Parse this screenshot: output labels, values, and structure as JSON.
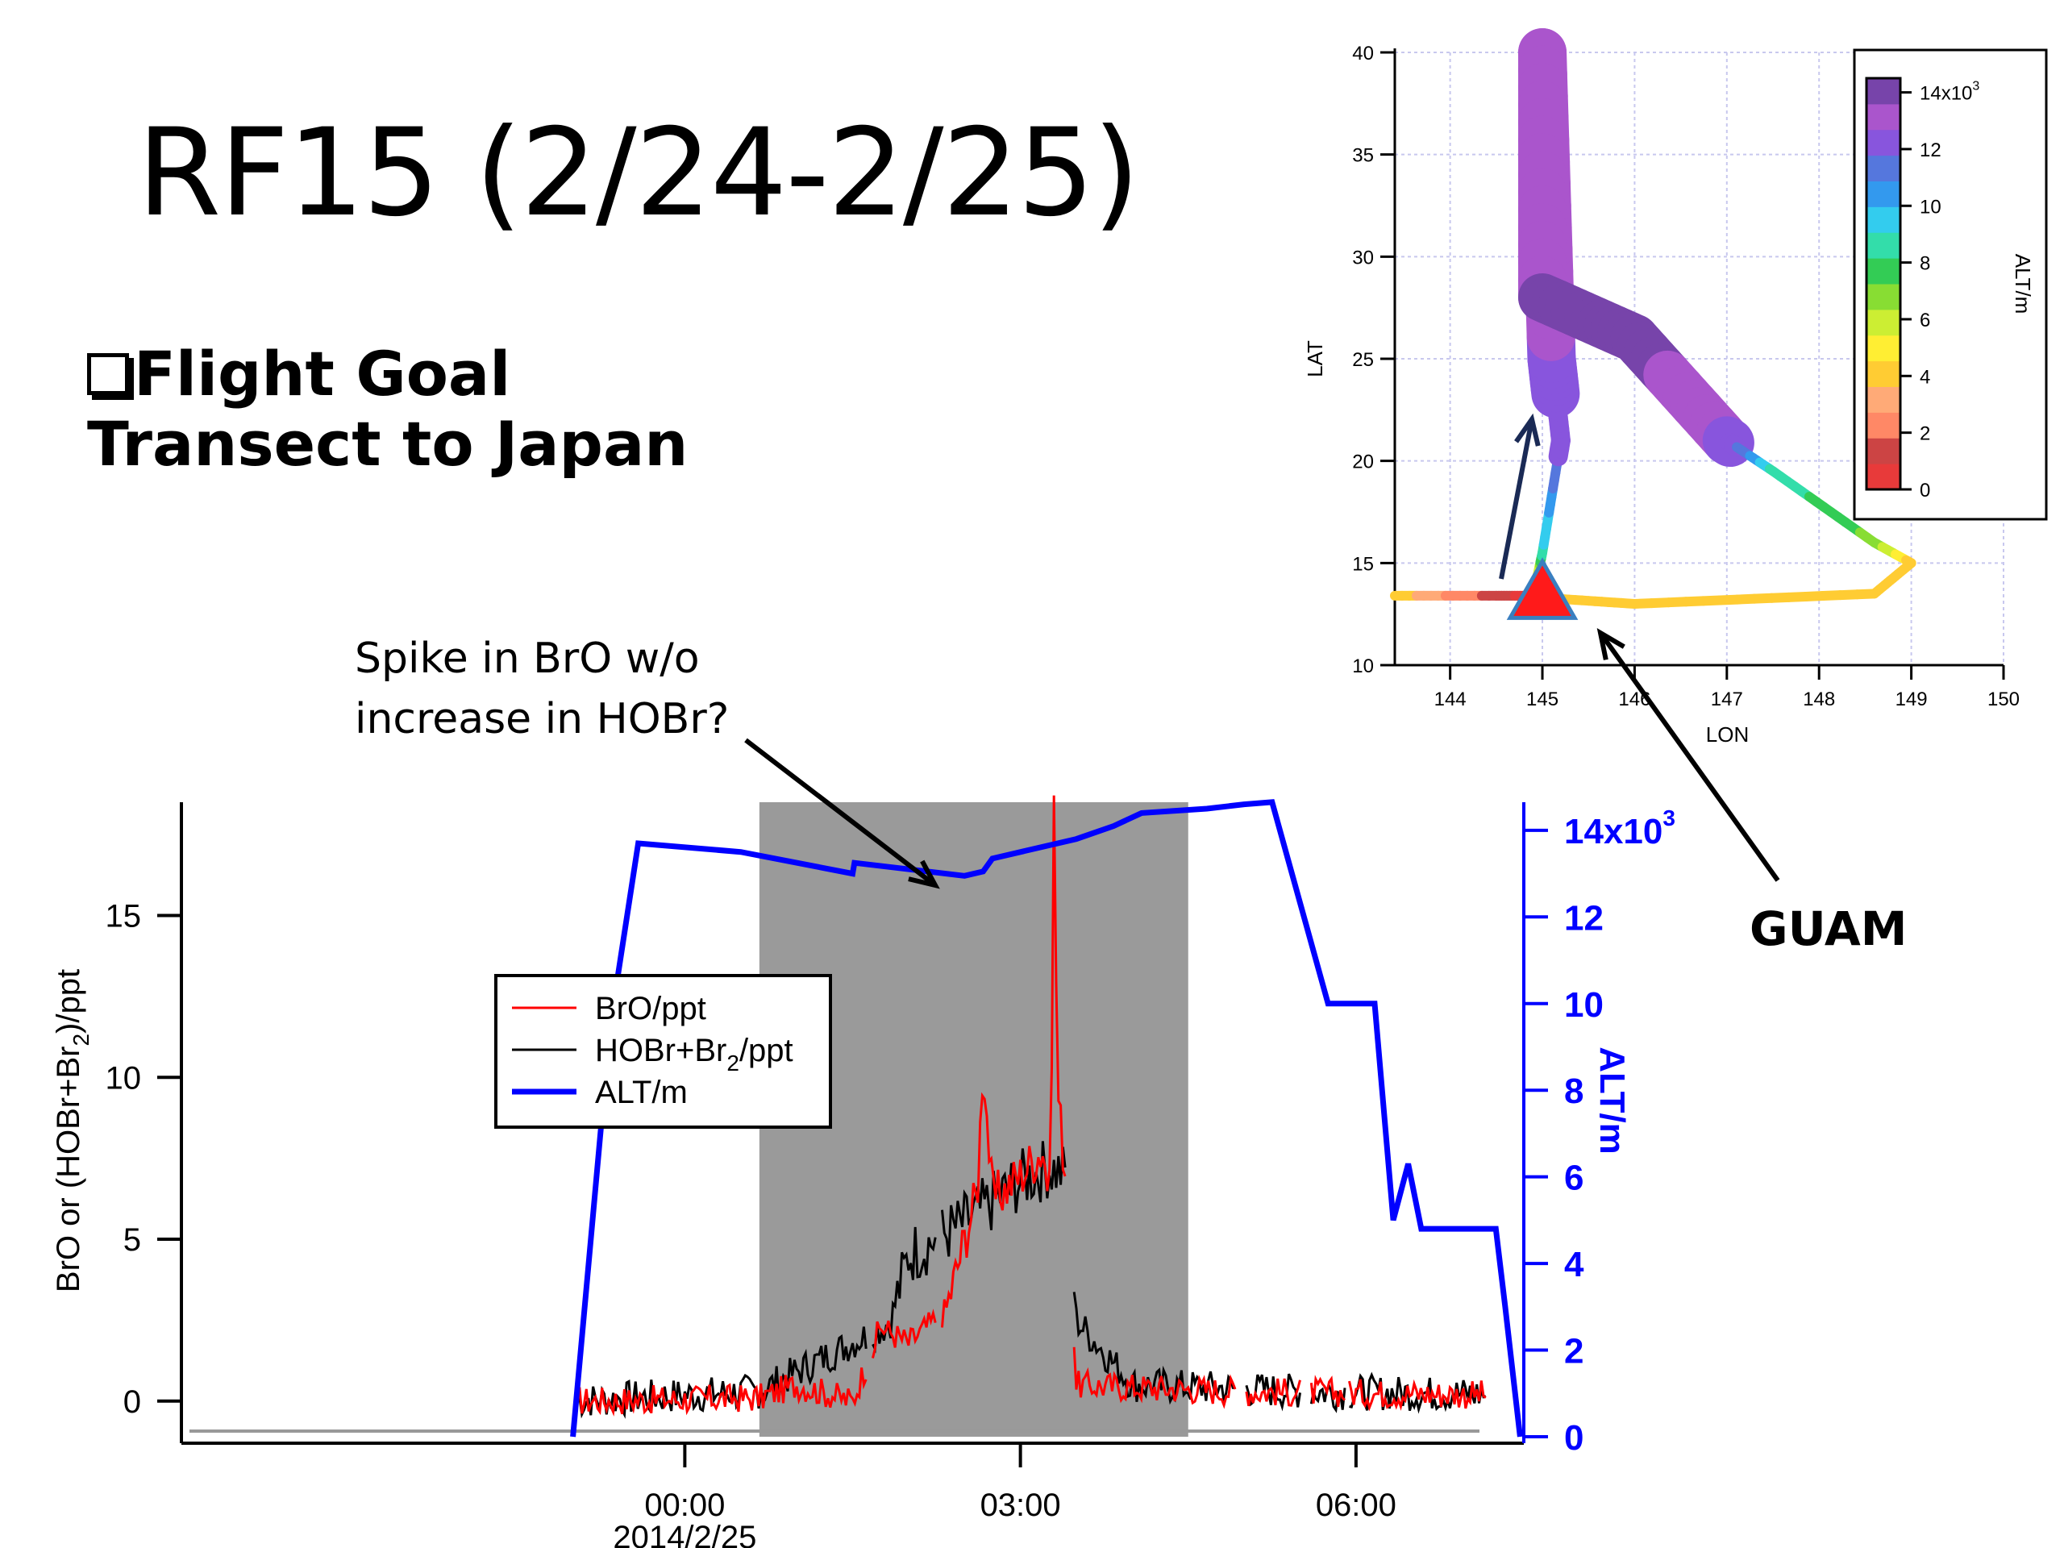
{
  "slide": {
    "title": "RF15 (2/24-2/25)",
    "goal_heading": "Flight Goal",
    "goal_text": "Transect to Japan",
    "callout_line1": "Spike in BrO w/o",
    "callout_line2": "increase in HOBr?",
    "guam_label": "GUAM",
    "checkbox_icon": "checkbox-icon"
  },
  "colors": {
    "bro": "#ff0000",
    "hobr": "#000000",
    "alt": "#0000ff",
    "shade": "#9a9a9a"
  },
  "chart_data": [
    {
      "type": "line",
      "xlabel": "",
      "x_ticks": [
        "00:00",
        "03:00",
        "06:00"
      ],
      "x_date_label": "2014/2/25",
      "ylabel": "BrO or (HOBr+Br2)/ppt",
      "ylim": [
        -1.3,
        18.5
      ],
      "y_ticks": [
        0,
        5,
        10,
        15
      ],
      "y2label": "ALT/m",
      "y2lim": [
        0,
        14500
      ],
      "y2_ticks": [
        "0",
        "2",
        "4",
        "6",
        "8",
        "10",
        "12"
      ],
      "y2_top_tick": "14x10",
      "y2_top_tick_exp": "3",
      "shaded_region": [
        "00:40",
        "04:30"
      ],
      "legend": {
        "position": "upper-left",
        "entries": [
          {
            "label": "BrO/ppt",
            "color": "#ff0000"
          },
          {
            "label": "HOBr+Br",
            "sub": "2",
            "suffix": "/ppt",
            "color": "#000000"
          },
          {
            "label": "ALT/m",
            "color": "#0000ff"
          }
        ]
      },
      "alt_series": {
        "name": "ALT/m",
        "points": [
          [
            "-01:00",
            0
          ],
          [
            "-00:40",
            9500
          ],
          [
            "-00:25",
            13700
          ],
          [
            "00:30",
            13500
          ],
          [
            "01:30",
            13000
          ],
          [
            "01:31",
            13250
          ],
          [
            "02:30",
            12950
          ],
          [
            "02:40",
            13050
          ],
          [
            "02:45",
            13350
          ],
          [
            "03:30",
            13800
          ],
          [
            "03:50",
            14100
          ],
          [
            "04:05",
            14400
          ],
          [
            "04:40",
            14500
          ],
          [
            "05:00",
            14600
          ],
          [
            "05:15",
            14650
          ],
          [
            "05:45",
            10000
          ],
          [
            "06:10",
            10000
          ],
          [
            "06:20",
            5000
          ],
          [
            "06:28",
            6300
          ],
          [
            "06:35",
            4800
          ],
          [
            "07:15",
            4800
          ],
          [
            "07:20",
            3000
          ],
          [
            "07:28",
            0
          ]
        ]
      },
      "bro_series": {
        "name": "BrO/ppt",
        "points": [
          [
            "-01:00",
            0.0
          ],
          [
            "00:40",
            0.1
          ],
          [
            "01:00",
            0.5
          ],
          [
            "01:30",
            0.0
          ],
          [
            "01:45",
            2.3
          ],
          [
            "02:00",
            1.8
          ],
          [
            "02:20",
            2.8
          ],
          [
            "02:37",
            6.5
          ],
          [
            "02:40",
            10.6
          ],
          [
            "02:45",
            6.2
          ],
          [
            "03:00",
            7.0
          ],
          [
            "03:12",
            7.8
          ],
          [
            "03:16",
            6.2
          ],
          [
            "03:18",
            18.4
          ],
          [
            "03:20",
            9.5
          ],
          [
            "03:25",
            6.6
          ],
          [
            "03:30",
            0.5
          ],
          [
            "05:00",
            0.3
          ],
          [
            "07:10",
            0.2
          ]
        ]
      },
      "hobr_series": {
        "name": "HOBr+Br2/ppt",
        "points": [
          [
            "-01:00",
            0.0
          ],
          [
            "00:40",
            0.3
          ],
          [
            "01:20",
            1.5
          ],
          [
            "01:50",
            2.4
          ],
          [
            "02:00",
            4.5
          ],
          [
            "02:30",
            5.5
          ],
          [
            "03:00",
            6.8
          ],
          [
            "03:15",
            7.2
          ],
          [
            "03:25",
            7.0
          ],
          [
            "03:30",
            2.5
          ],
          [
            "04:00",
            0.5
          ],
          [
            "05:30",
            0.3
          ],
          [
            "07:10",
            0.2
          ]
        ]
      }
    },
    {
      "type": "line",
      "xlabel": "LON",
      "ylabel": "LAT",
      "xlim": [
        143.4,
        150
      ],
      "ylim": [
        10,
        40
      ],
      "x_ticks": [
        144,
        145,
        146,
        147,
        148,
        149,
        150
      ],
      "y_ticks": [
        10,
        15,
        20,
        25,
        30,
        35,
        40
      ],
      "grid": true,
      "colorbar": {
        "label": "ALT/m",
        "ticks": [
          "0",
          "2",
          "4",
          "6",
          "8",
          "10",
          "12"
        ],
        "top_tick": "14x10",
        "top_tick_exp": "3",
        "colors": [
          "#e83a3a",
          "#cc4444",
          "#ff8866",
          "#ffaa77",
          "#ffcc33",
          "#ffee33",
          "#ccee33",
          "#88dd33",
          "#33cc55",
          "#33ddaa",
          "#33ccee",
          "#3399ee",
          "#5577dd",
          "#8855dd",
          "#aa55cc",
          "#7744aa"
        ]
      },
      "track": [
        {
          "lon": 143.4,
          "lat": 13.4,
          "alt": 4000
        },
        {
          "lon": 144.5,
          "lat": 13.4,
          "alt": 1000
        },
        {
          "lon": 144.9,
          "lat": 13.4,
          "alt": 0
        },
        {
          "lon": 145.0,
          "lat": 15.5,
          "alt": 9000
        },
        {
          "lon": 145.2,
          "lat": 21.0,
          "alt": 12500
        },
        {
          "lon": 145.1,
          "lat": 25.0,
          "alt": 13000
        },
        {
          "lon": 145.0,
          "lat": 40.0,
          "alt": 13500
        },
        {
          "lon": 145.0,
          "lat": 28.0,
          "alt": 14000
        },
        {
          "lon": 146.0,
          "lat": 26.0,
          "alt": 14500
        },
        {
          "lon": 147.0,
          "lat": 21.0,
          "alt": 13000
        },
        {
          "lon": 147.5,
          "lat": 19.5,
          "alt": 9000
        },
        {
          "lon": 148.6,
          "lat": 16.0,
          "alt": 7000
        },
        {
          "lon": 149.0,
          "lat": 15.0,
          "alt": 4000
        },
        {
          "lon": 148.6,
          "lat": 13.5,
          "alt": 4000
        },
        {
          "lon": 146.0,
          "lat": 13.0,
          "alt": 4000
        },
        {
          "lon": 145.0,
          "lat": 13.3,
          "alt": 4000
        }
      ],
      "guam_marker": {
        "lon": 145.0,
        "lat": 13.5
      }
    }
  ]
}
